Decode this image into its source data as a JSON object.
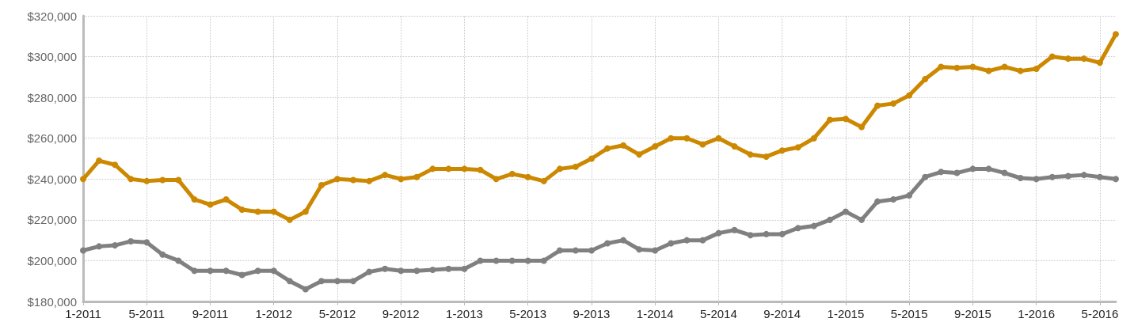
{
  "chart_data": {
    "type": "line",
    "categories": [
      "1-2011",
      null,
      null,
      null,
      "5-2011",
      null,
      null,
      null,
      "9-2011",
      null,
      null,
      null,
      "1-2012",
      null,
      null,
      null,
      "5-2012",
      null,
      null,
      null,
      "9-2012",
      null,
      null,
      null,
      "1-2013",
      null,
      null,
      null,
      "5-2013",
      null,
      null,
      null,
      "9-2013",
      null,
      null,
      null,
      "1-2014",
      null,
      null,
      null,
      "5-2014",
      null,
      null,
      null,
      "9-2014",
      null,
      null,
      null,
      "1-2015",
      null,
      null,
      null,
      "5-2015",
      null,
      null,
      null,
      "9-2015",
      null,
      null,
      null,
      "1-2016",
      null,
      null,
      null,
      "5-2016",
      null
    ],
    "series": [
      {
        "color": "#cc8800",
        "values": [
          240000,
          249000,
          247000,
          240000,
          239000,
          239500,
          239500,
          230000,
          227500,
          230000,
          225000,
          224000,
          224000,
          220000,
          224000,
          237000,
          240000,
          239500,
          239000,
          242000,
          240000,
          241000,
          245000,
          245000,
          245000,
          244500,
          240000,
          242500,
          241000,
          239000,
          245000,
          246000,
          250000,
          255000,
          256500,
          252000,
          256000,
          260000,
          260000,
          257000,
          260000,
          256000,
          252000,
          251000,
          254000,
          255500,
          260000,
          269000,
          269500,
          265500,
          276000,
          277000,
          281000,
          289000,
          295000,
          294500,
          295000,
          293000,
          295000,
          293000,
          294000,
          300000,
          299000,
          299000,
          297000,
          311000
        ]
      },
      {
        "color": "#808080",
        "values": [
          205000,
          207000,
          207500,
          209500,
          209000,
          203000,
          200000,
          195000,
          195000,
          195000,
          193000,
          195000,
          195000,
          190000,
          186000,
          190000,
          190000,
          190000,
          194500,
          196000,
          195000,
          195000,
          195500,
          196000,
          196000,
          200000,
          200000,
          200000,
          200000,
          200000,
          205000,
          205000,
          205000,
          208500,
          210000,
          205500,
          205000,
          208500,
          210000,
          210000,
          213500,
          215000,
          212500,
          213000,
          213000,
          216000,
          217000,
          220000,
          224000,
          220000,
          229000,
          230000,
          232000,
          241000,
          243500,
          243000,
          245000,
          245000,
          243000,
          240500,
          240000,
          241000,
          241500,
          242000,
          241000,
          240000
        ]
      }
    ],
    "ylim": [
      180000,
      320000
    ],
    "yticks": [
      {
        "value": 180000,
        "label": "$180,000"
      },
      {
        "value": 200000,
        "label": "$200,000"
      },
      {
        "value": 220000,
        "label": "$220,000"
      },
      {
        "value": 240000,
        "label": "$240,000"
      },
      {
        "value": 260000,
        "label": "$260,000"
      },
      {
        "value": 280000,
        "label": "$280,000"
      },
      {
        "value": 300000,
        "label": "$300,000"
      },
      {
        "value": 320000,
        "label": "$320,000"
      }
    ],
    "grid": true,
    "marker": "circle",
    "line_style": "solid"
  }
}
